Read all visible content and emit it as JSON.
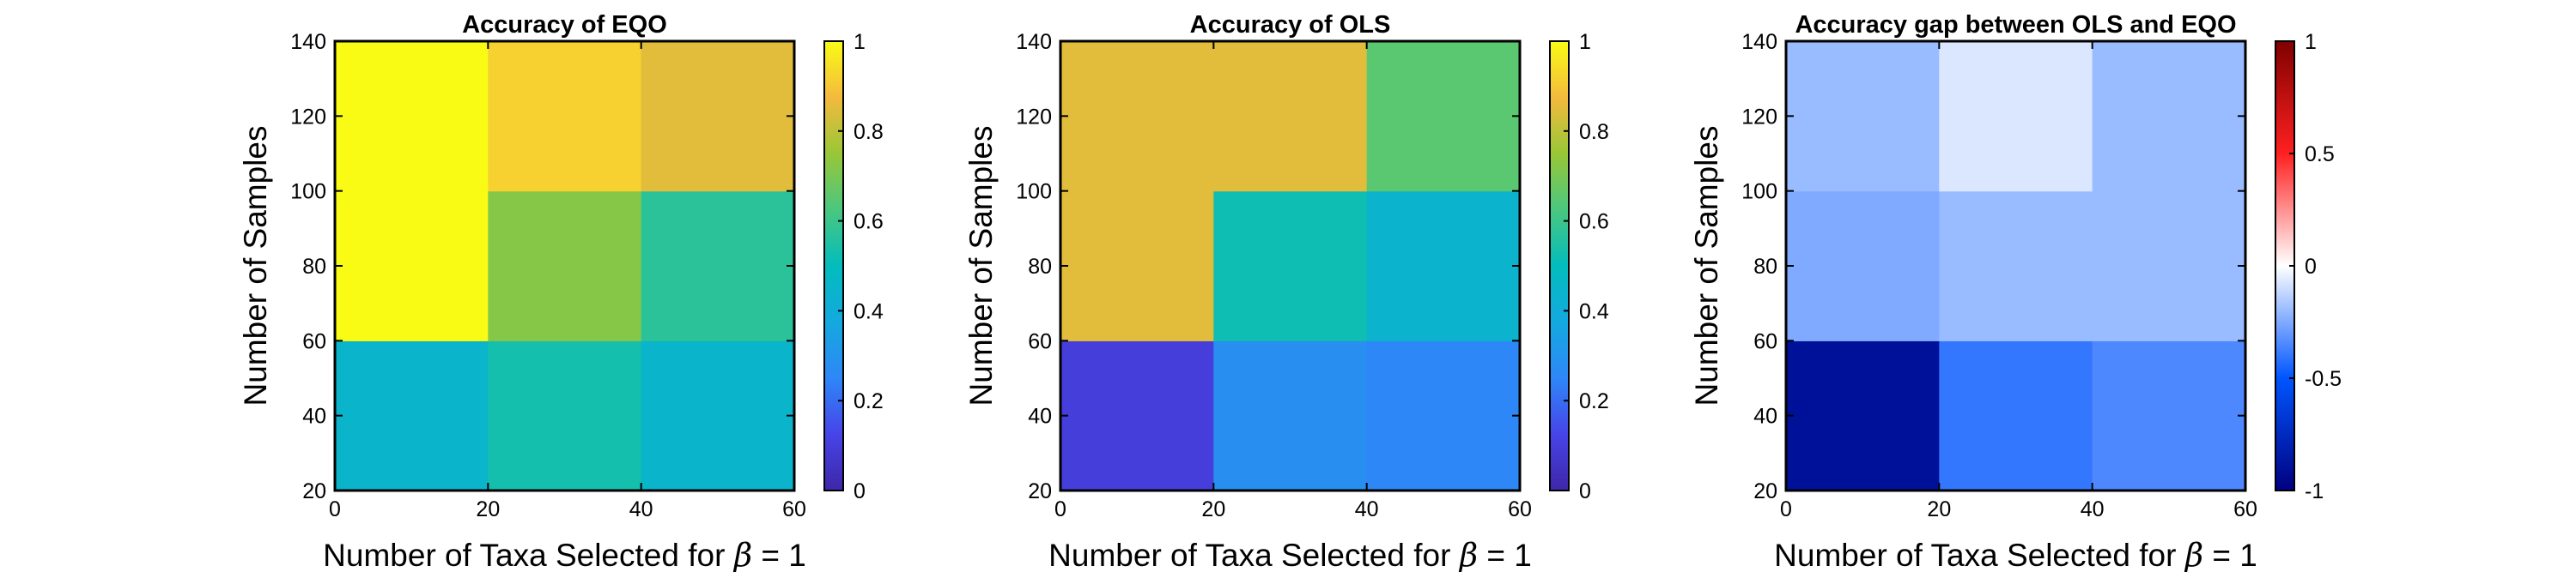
{
  "chart_data": [
    {
      "type": "heatmap",
      "title": "Accuracy of EQO",
      "xlabel": "Number of Taxa Selected for β = 1",
      "ylabel": "Number of Samples",
      "xlim": [
        0,
        60
      ],
      "ylim": [
        20,
        140
      ],
      "x_ticks": [
        "0",
        "20",
        "40",
        "60"
      ],
      "y_ticks": [
        "20",
        "40",
        "60",
        "80",
        "100",
        "120",
        "140"
      ],
      "x_edges": [
        0,
        20,
        40,
        60
      ],
      "y_edges": [
        20,
        60,
        100,
        140
      ],
      "values": [
        [
          0.45,
          0.53,
          0.45
        ],
        [
          1.0,
          0.72,
          0.57
        ],
        [
          1.0,
          0.92,
          0.85
        ]
      ],
      "colormap": "parula",
      "clim": [
        0,
        1
      ],
      "colorbar_ticks": [
        "0",
        "0.2",
        "0.4",
        "0.6",
        "0.8",
        "1"
      ],
      "colorbar_values": [
        0,
        0.2,
        0.4,
        0.6,
        0.8,
        1
      ]
    },
    {
      "type": "heatmap",
      "title": "Accuracy of OLS",
      "xlabel": "Number of Taxa Selected for β = 1",
      "ylabel": "Number of Samples",
      "xlim": [
        0,
        60
      ],
      "ylim": [
        20,
        140
      ],
      "x_ticks": [
        "0",
        "20",
        "40",
        "60"
      ],
      "y_ticks": [
        "20",
        "40",
        "60",
        "80",
        "100",
        "120",
        "140"
      ],
      "x_edges": [
        0,
        20,
        40,
        60
      ],
      "y_edges": [
        20,
        60,
        100,
        140
      ],
      "values": [
        [
          0.1,
          0.28,
          0.25
        ],
        [
          0.85,
          0.52,
          0.44
        ],
        [
          0.85,
          0.85,
          0.65
        ]
      ],
      "colormap": "parula",
      "clim": [
        0,
        1
      ],
      "colorbar_ticks": [
        "0",
        "0.2",
        "0.4",
        "0.6",
        "0.8",
        "1"
      ],
      "colorbar_values": [
        0,
        0.2,
        0.4,
        0.6,
        0.8,
        1
      ]
    },
    {
      "type": "heatmap",
      "title": "Accuracy gap between OLS and EQO",
      "xlabel": "Number of Taxa Selected for β = 1",
      "ylabel": "Number of Samples",
      "xlim": [
        0,
        60
      ],
      "ylim": [
        20,
        140
      ],
      "x_ticks": [
        "0",
        "20",
        "40",
        "60"
      ],
      "y_ticks": [
        "20",
        "40",
        "60",
        "80",
        "100",
        "120",
        "140"
      ],
      "x_edges": [
        0,
        20,
        40,
        60
      ],
      "y_edges": [
        20,
        60,
        100,
        140
      ],
      "values": [
        [
          -0.9,
          -0.4,
          -0.35
        ],
        [
          -0.25,
          -0.2,
          -0.2
        ],
        [
          -0.2,
          -0.07,
          -0.2
        ]
      ],
      "colormap": "blue-white-red",
      "clim": [
        -1,
        1
      ],
      "colorbar_ticks": [
        "-1",
        "-0.5",
        "0",
        "0.5",
        "1"
      ],
      "colorbar_values": [
        -1,
        -0.5,
        0,
        0.5,
        1
      ]
    }
  ]
}
